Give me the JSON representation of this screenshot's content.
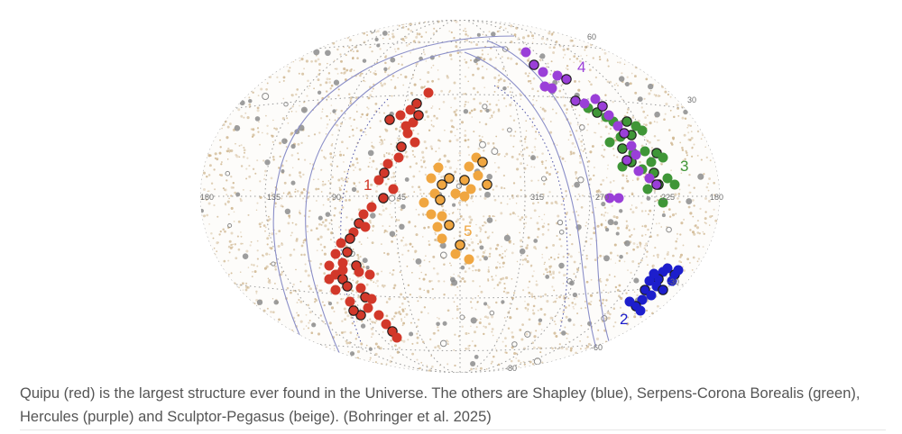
{
  "figure": {
    "grid_labels": [
      {
        "text": "60"
      },
      {
        "text": "30"
      },
      {
        "text": "180"
      },
      {
        "text": "135"
      },
      {
        "text": "90"
      },
      {
        "text": "45"
      },
      {
        "text": "315"
      },
      {
        "text": "270"
      },
      {
        "text": "225"
      },
      {
        "text": "180"
      },
      {
        "text": "-30"
      },
      {
        "text": "-60"
      },
      {
        "text": "-80"
      }
    ],
    "groups": [
      {
        "label": "1",
        "color": "#d2382a"
      },
      {
        "label": "2",
        "color": "#1d1ecc"
      },
      {
        "label": "3",
        "color": "#3f9637"
      },
      {
        "label": "4",
        "color": "#9a3fd8"
      },
      {
        "label": "5",
        "color": "#f0a640"
      }
    ],
    "colors": {
      "background_dots": "#c9ad82",
      "gray_dots": "#8c8c8c",
      "milky_way": "#8a8ec8"
    }
  },
  "caption": {
    "text": "Quipu (red) is the largest structure ever found in the Universe. The others are Shapley (blue), Serpens-Corona Borealis (green), Hercules (purple) and Sculptor-Pegasus (beige). (Bohringer et al. 2025)"
  }
}
